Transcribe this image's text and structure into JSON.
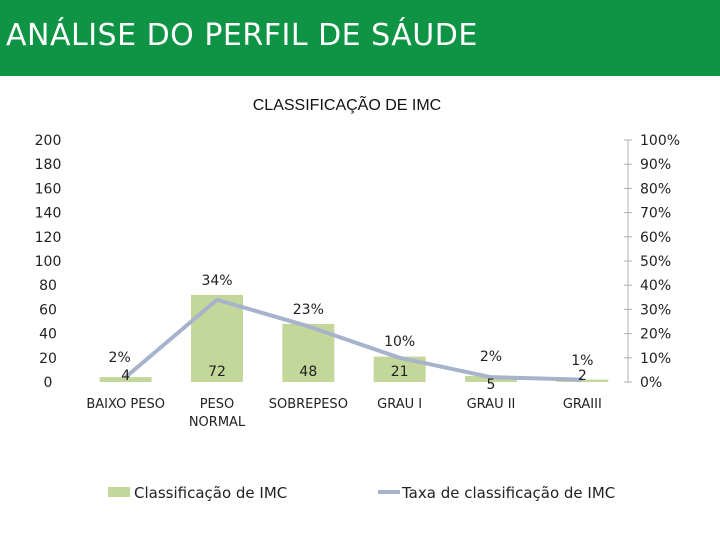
{
  "header": {
    "title": "ANÁLISE DO PERFIL DE SÁUDE",
    "bg_color": "#0e9444"
  },
  "chart_data": {
    "type": "bar",
    "title": "CLASSIFICAÇÃO DE IMC",
    "categories": [
      [
        "BAIXO PESO"
      ],
      [
        "PESO",
        "NORMAL"
      ],
      [
        "SOBREPESO"
      ],
      [
        "GRAU I"
      ],
      [
        "GRAU II"
      ],
      [
        "GRAIII"
      ]
    ],
    "series": [
      {
        "name": "Classificação de IMC",
        "type": "bar",
        "axis": "left",
        "color": "#c4d79b",
        "values": [
          4,
          72,
          48,
          21,
          5,
          2
        ],
        "labels": [
          "4",
          "72",
          "48",
          "21",
          "5",
          "2"
        ]
      },
      {
        "name": "Taxa de classificação de IMC",
        "type": "line",
        "axis": "right",
        "color": "#a6b3cb",
        "values": [
          2,
          34,
          23,
          10,
          2,
          1
        ],
        "labels": [
          "2%",
          "34%",
          "23%",
          "10%",
          "2%",
          "1%"
        ]
      }
    ],
    "y_left": {
      "ylim": [
        0,
        200
      ],
      "ticks": [
        "0",
        "20",
        "40",
        "60",
        "80",
        "100",
        "120",
        "140",
        "160",
        "180",
        "200"
      ]
    },
    "y_right": {
      "ylim": [
        0,
        100
      ],
      "ticks": [
        "0%",
        "10%",
        "20%",
        "30%",
        "40%",
        "50%",
        "60%",
        "70%",
        "80%",
        "90%",
        "100%"
      ]
    },
    "grid": false,
    "legend_position": "bottom"
  }
}
